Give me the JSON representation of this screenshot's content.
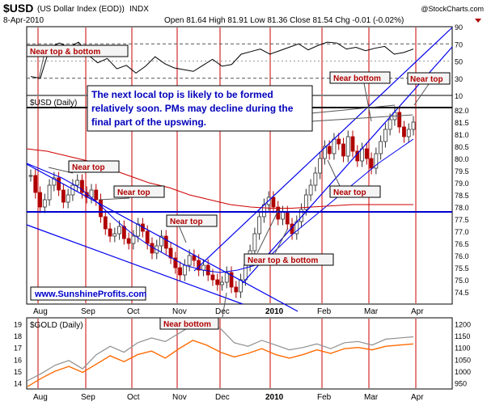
{
  "header": {
    "symbol": "$USD",
    "name": "(US Dollar Index (EOD))",
    "exchange": "INDX",
    "date": "8-Apr-2010",
    "stats": "Open 81.64  High 81.91  Low 81.36  Close 81.54  Chg -0.01 (-0.02%)",
    "brand": "@StockCharts.com"
  },
  "colors": {
    "price_up": "#303030",
    "price_down": "#b00000",
    "trendline": "#0000ee",
    "support": "#0000cc",
    "moving_average_red": "#cc0000",
    "callout_border": "#000000",
    "callout_text": "#b00000",
    "callout_fill": "#f4f4f4",
    "month_line": "#cc0000",
    "gold_line": "#ff6a00",
    "usd_overlay_line": "#909090",
    "rsi_line": "#000000",
    "link": "#0000cc"
  },
  "annotations": {
    "note": "The next local top is likely to be formed relatively soon. PMs may decline during the final part of the upswing.",
    "watermark": "www.SunshineProfits.com",
    "callouts": [
      {
        "text": "Near top & bottom"
      },
      {
        "text": "Near top"
      },
      {
        "text": "Near top"
      },
      {
        "text": "Near top"
      },
      {
        "text": "Near top & bottom"
      },
      {
        "text": "Near bottom"
      },
      {
        "text": "Near top"
      },
      {
        "text": "Near bottom"
      },
      {
        "text": "Near top"
      }
    ]
  },
  "chart_data": [
    {
      "type": "line",
      "panel": "rsi",
      "ylim": [
        10,
        90
      ],
      "yticks": [
        "90",
        "70",
        "50",
        "30",
        "10"
      ],
      "reference_lines": [
        70,
        30
      ],
      "months": [
        "Aug",
        "Sep",
        "Oct",
        "Nov",
        "Dec",
        "2010",
        "Feb",
        "Mar",
        "Apr"
      ],
      "values": [
        32,
        30,
        66,
        71,
        66,
        72,
        57,
        48,
        53,
        41,
        45,
        36,
        44,
        55,
        47,
        42,
        40,
        38,
        45,
        52,
        44,
        46,
        58,
        61,
        64,
        58,
        62,
        66,
        70,
        63,
        68,
        72,
        71,
        64,
        66,
        62,
        65,
        67,
        58,
        60,
        64
      ]
    },
    {
      "type": "bar",
      "panel": "price",
      "title": "$USD (Daily)",
      "ylim": [
        74,
        82.6
      ],
      "yticks": [
        "82.0",
        "81.5",
        "81.0",
        "80.5",
        "80.0",
        "79.5",
        "79.0",
        "78.5",
        "78.0",
        "77.5",
        "77.0",
        "76.5",
        "76.0",
        "75.5",
        "75.0",
        "74.5"
      ],
      "months": [
        "Aug",
        "Sep",
        "Oct",
        "Nov",
        "Dec",
        "2010",
        "Feb",
        "Mar",
        "Apr"
      ],
      "support_level": 77.7,
      "resistance_level": 82.0,
      "values": [
        79.3,
        78.6,
        78.0,
        78.3,
        78.9,
        79.2,
        78.7,
        78.2,
        78.5,
        78.9,
        79.1,
        78.6,
        78.4,
        78.7,
        78.3,
        77.6,
        77.1,
        76.8,
        76.9,
        77.2,
        76.7,
        76.5,
        76.8,
        77.3,
        77.0,
        76.5,
        76.1,
        76.4,
        76.8,
        76.3,
        75.9,
        75.5,
        75.2,
        75.6,
        76.0,
        75.8,
        75.4,
        75.6,
        75.2,
        75.0,
        74.8,
        74.9,
        75.3,
        74.7,
        74.5,
        75.0,
        75.6,
        76.2,
        76.9,
        77.6,
        78.1,
        78.4,
        78.0,
        77.5,
        77.8,
        77.3,
        76.9,
        77.4,
        77.9,
        78.5,
        78.9,
        79.4,
        80.0,
        80.5,
        80.2,
        80.8,
        80.6,
        80.1,
        80.9,
        80.3,
        79.9,
        80.4,
        80.0,
        79.6,
        80.2,
        80.7,
        81.2,
        81.6,
        81.9,
        81.3,
        80.9,
        81.2,
        81.5
      ],
      "moving_averages": [
        {
          "values": [
            79.8,
            79.5,
            79.2,
            78.8,
            78.2,
            77.5,
            76.9,
            76.4,
            76.0,
            75.6,
            75.4,
            75.3,
            75.4,
            75.6,
            76.1,
            76.8,
            77.4,
            78.0,
            78.6,
            79.2,
            79.8,
            80.3,
            80.8
          ]
        },
        {
          "values": [
            80.4,
            80.3,
            80.1,
            79.9,
            79.6,
            79.3,
            79.0,
            78.8,
            78.5,
            78.3,
            78.1,
            78.0,
            77.95,
            77.95,
            78.0,
            78.05,
            78.1,
            78.1,
            78.1,
            78.1
          ]
        }
      ]
    },
    {
      "type": "line",
      "panel": "gold",
      "title": "$GOLD (Daily)",
      "ylim": [
        13.5,
        19.5
      ],
      "yticks_left": [
        "19",
        "18",
        "17",
        "16",
        "15",
        "14"
      ],
      "yticks_right": [
        "1200",
        "1150",
        "1100",
        "1050",
        "1000",
        "950"
      ],
      "months": [
        "Aug",
        "Sep",
        "Oct",
        "Nov",
        "Dec",
        "2010",
        "Feb",
        "Mar",
        "Apr"
      ],
      "series": [
        {
          "values": [
            14.2,
            14.8,
            15.5,
            15.9,
            15.2,
            16.4,
            17.1,
            16.6,
            17.4,
            17.8,
            17.5,
            18.2,
            18.9,
            19.1,
            18.6,
            17.4,
            17.1,
            17.6,
            17.2,
            16.8,
            17.0,
            17.3,
            16.9,
            17.4,
            17.5,
            17.2,
            17.7,
            17.8,
            17.9
          ]
        },
        {
          "values": [
            13.7,
            14.4,
            15.0,
            15.4,
            14.9,
            15.6,
            16.3,
            15.8,
            16.4,
            16.7,
            16.1,
            16.9,
            17.6,
            17.2,
            16.6,
            16.2,
            16.5,
            16.9,
            16.4,
            16.1,
            16.4,
            16.8,
            16.5,
            16.9,
            17.0,
            16.8,
            17.1,
            17.2,
            17.3
          ]
        }
      ]
    }
  ]
}
